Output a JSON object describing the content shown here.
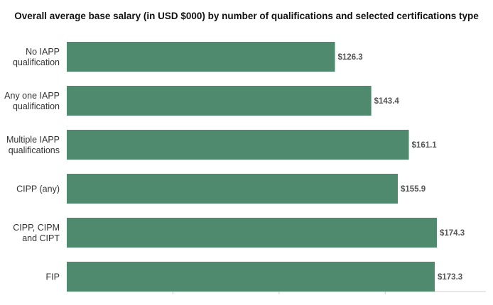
{
  "chart_data": {
    "type": "bar",
    "orientation": "horizontal",
    "title": "Overall average base salary (in USD $000) by number of qualifications and selected certifications type",
    "categories": [
      [
        "No IAPP",
        "qualification"
      ],
      [
        "Any one IAPP",
        "qualification"
      ],
      [
        "Multiple IAPP",
        "qualifications"
      ],
      [
        "CIPP (any)"
      ],
      [
        "CIPP, CIPM",
        "and CIPT"
      ],
      [
        "FIP"
      ]
    ],
    "values": [
      126.3,
      143.4,
      161.1,
      155.9,
      174.3,
      173.3
    ],
    "value_labels": [
      "$126.3",
      "$143.4",
      "$161.1",
      "$155.9",
      "$174.3",
      "$173.3"
    ],
    "xlim": [
      0,
      180
    ],
    "bar_color": "#4f8a6e",
    "grid": false
  }
}
